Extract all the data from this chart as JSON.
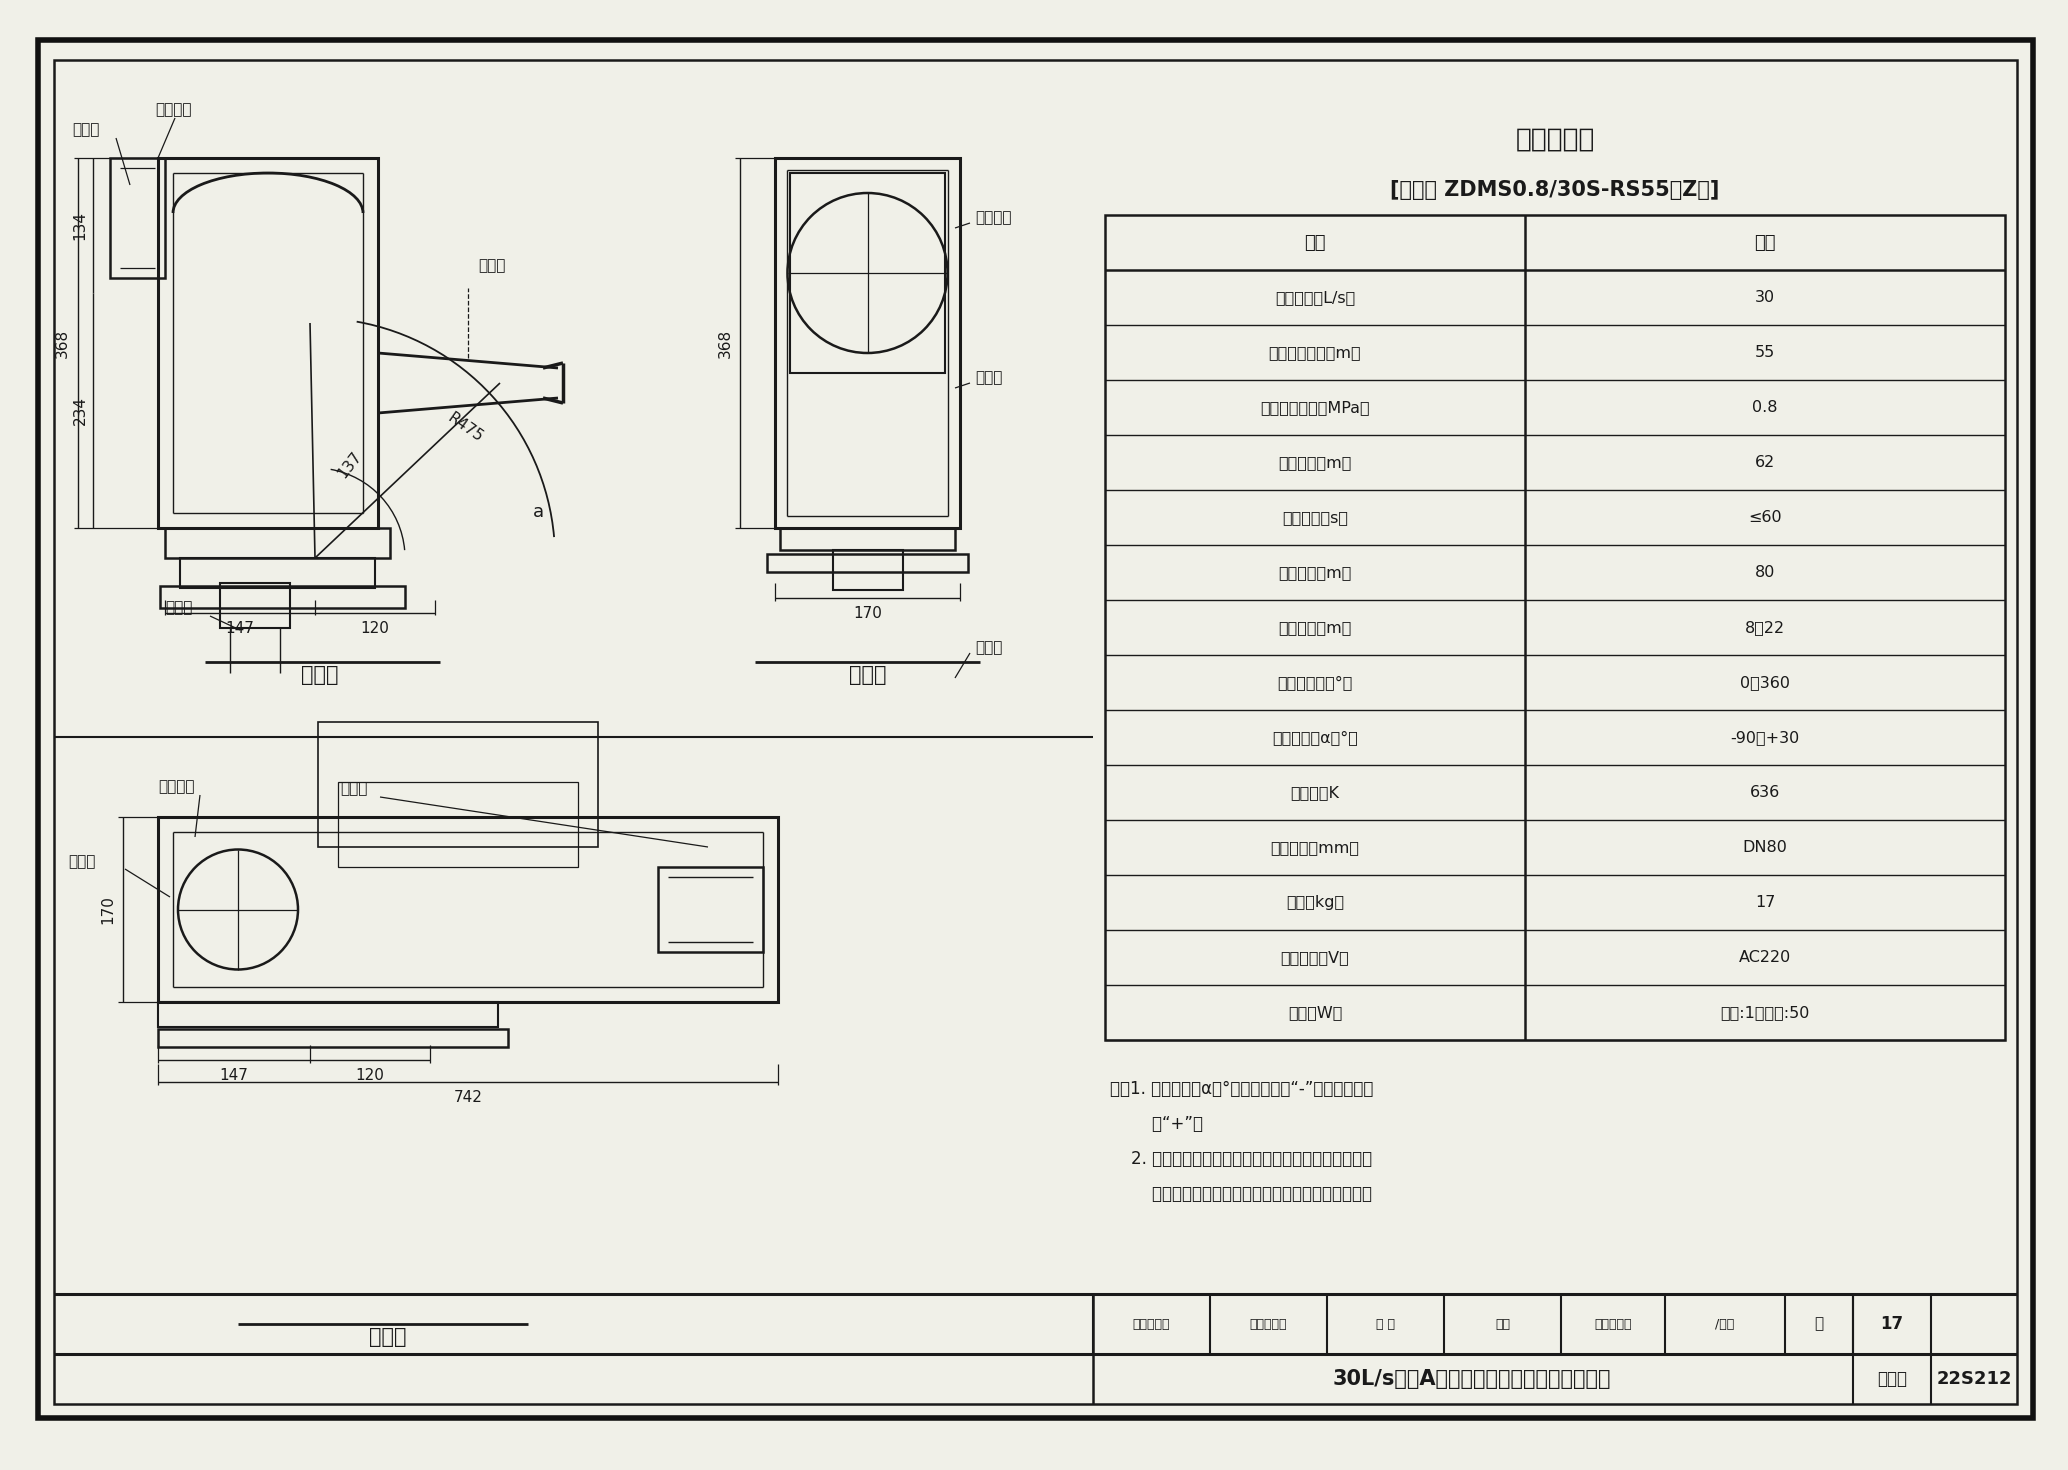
{
  "bg_color": "#f0f0e8",
  "line_color": "#1a1a1a",
  "title_table": "装置参数表",
  "model_label": "[型号： ZDMS0.8/30S-RS55（Z）]",
  "table_headers": [
    "项目",
    "指标"
  ],
  "table_rows": [
    [
      "额定流量（L/s）",
      "30"
    ],
    [
      "最大保护半径（m）",
      "55"
    ],
    [
      "额定工作压力（MPa）",
      "0.8"
    ],
    [
      "射流半径（m）",
      "62"
    ],
    [
      "定位时间（s）",
      "≤60"
    ],
    [
      "监控半径（m）",
      "80"
    ],
    [
      "安装高度（m）",
      "8～22"
    ],
    [
      "水平回转角（°）",
      "0～360"
    ],
    [
      "俧仰回转角α（°）",
      "-90～+30"
    ],
    [
      "流量系数K",
      "636"
    ],
    [
      "接口尺寸（mm）",
      "DN80"
    ],
    [
      "重量（kg）",
      "17"
    ],
    [
      "电机电压（V）",
      "AC220"
    ],
    [
      "功率（W）",
      "监视:1；扫描:50"
    ]
  ],
  "front_view_label": "正视图",
  "side_view_label": "侧视图",
  "top_view_label": "俧视图",
  "note_line1": "注：1. 俧仰回转角α（°）为俧角时为“-”，为仰俧角时",
  "note_line2": "        为“+”。",
  "note_line3": "    2. 自动消防炮在系统自动状态下，只能以平射和向下",
  "note_line4": "        方喷射进行瞄准灭火，而不能做到仰射瞄准火源。",
  "bottom_title": "30L/s直立A型自动消防炮外形尺寸及参数表",
  "bottom_label1": "图集号",
  "bottom_label2": "22S212",
  "bottom_page_label": "页",
  "bottom_page_num": "17",
  "credit_shenhe": "审核张立成",
  "credit_zhanglicheng": "张立成校对",
  "credit_zhang": "张 爽",
  "credit_hongdian": "弘典",
  "credit_design": "设计赵首权",
  "credit_yang": "/杨松",
  "lbl_zhubanghe_front": "主板盒",
  "lbl_chuizhidianji_front": "垂直电机",
  "lbl_chushuikou_front": "出水口",
  "lbl_jinshuiguan_front": "进水管",
  "lbl_chuizhidianji_side": "垂直电机",
  "lbl_zhubanghe_side": "主板盒",
  "lbl_jinshuiguan_side": "进水管",
  "lbl_chuizhidianji_top": "垂直电机",
  "lbl_zhubanghe_top": "主板盒",
  "lbl_chushuikou_top": "出水口",
  "dim_368": "368",
  "dim_134": "134",
  "dim_234": "234",
  "dim_147": "147",
  "dim_120": "120",
  "dim_R475": "R475",
  "dim_137": "137",
  "dim_170": "170",
  "dim_742": "742",
  "dim_alpha": "a"
}
